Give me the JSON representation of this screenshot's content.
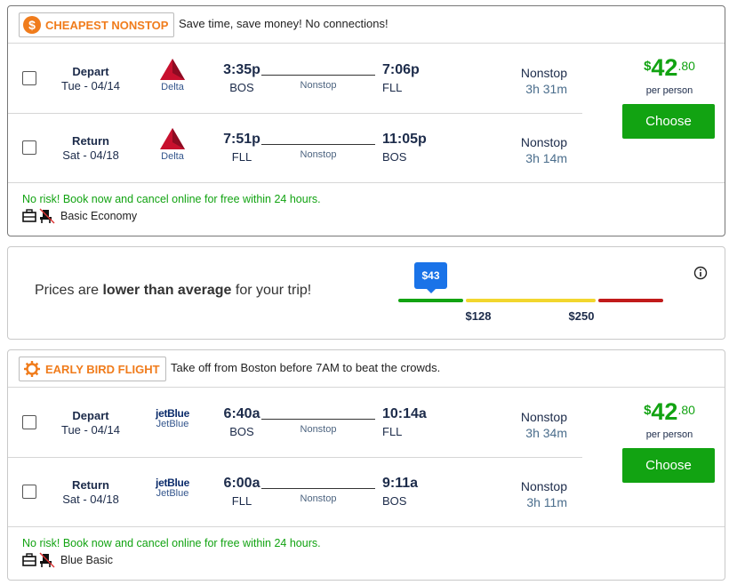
{
  "cards": [
    {
      "badge_icon": "$",
      "badge": "CHEAPEST NONSTOP",
      "tagline": "Save time, save money! No connections!",
      "legs": [
        {
          "direction": "Depart",
          "date": "Tue - 04/14",
          "airline": "Delta",
          "dep_time": "3:35p",
          "dep_airport": "BOS",
          "stops": "Nonstop",
          "arr_time": "7:06p",
          "arr_airport": "FLL",
          "stop_summary": "Nonstop",
          "duration": "3h 31m"
        },
        {
          "direction": "Return",
          "date": "Sat - 04/18",
          "airline": "Delta",
          "dep_time": "7:51p",
          "dep_airport": "FLL",
          "stops": "Nonstop",
          "arr_time": "11:05p",
          "arr_airport": "BOS",
          "stop_summary": "Nonstop",
          "duration": "3h 14m"
        }
      ],
      "price": {
        "currency": "$",
        "whole": "42",
        "cents": ".80",
        "unit": "per person"
      },
      "button": "Choose",
      "notice": "No risk! Book now and cancel online for free within 24 hours.",
      "fare": "Basic Economy"
    },
    {
      "badge": "EARLY BIRD FLIGHT",
      "tagline": "Take off from Boston before 7AM to beat the crowds.",
      "legs": [
        {
          "direction": "Depart",
          "date": "Tue - 04/14",
          "logo": "jetBlue",
          "airline": "JetBlue",
          "dep_time": "6:40a",
          "dep_airport": "BOS",
          "stops": "Nonstop",
          "arr_time": "10:14a",
          "arr_airport": "FLL",
          "stop_summary": "Nonstop",
          "duration": "3h 34m"
        },
        {
          "direction": "Return",
          "date": "Sat - 04/18",
          "logo": "jetBlue",
          "airline": "JetBlue",
          "dep_time": "6:00a",
          "dep_airport": "FLL",
          "stops": "Nonstop",
          "arr_time": "9:11a",
          "arr_airport": "BOS",
          "stop_summary": "Nonstop",
          "duration": "3h 11m"
        }
      ],
      "price": {
        "currency": "$",
        "whole": "42",
        "cents": ".80",
        "unit": "per person"
      },
      "button": "Choose",
      "notice": "No risk! Book now and cancel online for free within 24 hours.",
      "fare": "Blue Basic"
    }
  ],
  "price_meter": {
    "text_before": "Prices are ",
    "emphasis": "lower than average",
    "text_after": " for your trip!",
    "current": "$43",
    "low": "$128",
    "high": "$250"
  }
}
